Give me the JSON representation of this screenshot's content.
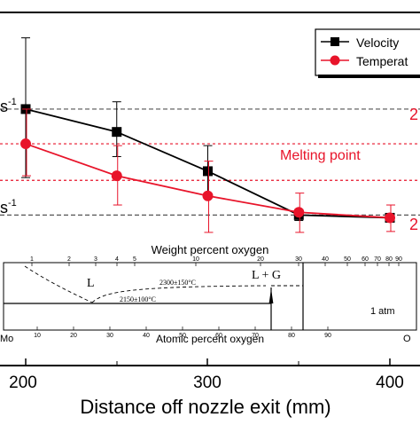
{
  "chart_data": {
    "type": "line",
    "x": [
      200,
      250,
      300,
      350,
      400
    ],
    "xlabel": "Distance off nozzle exit (mm)",
    "xticks": [
      200,
      300,
      400
    ],
    "series": [
      {
        "name": "Velocity",
        "color": "#000000",
        "marker": "square",
        "values": [
          2.4,
          2.15,
          1.72,
          1.24,
          1.21
        ],
        "error_low": [
          1.65,
          1.88,
          1.45,
          1.18,
          1.17
        ],
        "error_high": [
          3.18,
          2.48,
          2.0,
          1.3,
          1.25
        ]
      },
      {
        "name": "Temperature",
        "color": "#e8142a",
        "marker": "circle",
        "values": [
          2.02,
          1.67,
          1.45,
          1.27,
          1.21
        ],
        "error_low": [
          1.67,
          1.35,
          1.05,
          1.05,
          1.06
        ],
        "error_high": [
          2.4,
          2.0,
          1.83,
          1.48,
          1.35
        ]
      }
    ],
    "ylim": [
      0.0,
      3.4
    ],
    "reference_lines": [
      {
        "y": 2.4,
        "color": "#555555",
        "style": "dashed"
      },
      {
        "y": 2.02,
        "color": "#e8142a",
        "style": "dotted"
      },
      {
        "y": 1.62,
        "color": "#e8142a",
        "style": "dotted"
      },
      {
        "y": 1.24,
        "color": "#555555",
        "style": "dashed"
      }
    ],
    "annotations": {
      "melting_point": "Melting point",
      "left_label_upper": "s",
      "left_label_upper_sup": "-1",
      "left_label_lower": "s",
      "left_label_lower_sup": "-1",
      "right_label_upper": "2",
      "right_label_lower": "2"
    },
    "legend": {
      "placement": "top-right",
      "entries": [
        "Velocity",
        "Temperat"
      ]
    }
  },
  "phase_diagram": {
    "top_axis_title": "Weight percent oxygen",
    "top_ticks": [
      "1",
      "2",
      "3",
      "4",
      "5",
      "10",
      "20",
      "30",
      "40",
      "50",
      "60",
      "70",
      "80",
      "90"
    ],
    "bottom_axis_title": "Atomic percent oxygen",
    "bottom_ticks": [
      "10",
      "20",
      "30",
      "40",
      "50",
      "60",
      "70",
      "80",
      "90"
    ],
    "left_element": "Mo",
    "right_element": "O",
    "region_L": "L",
    "region_LG": "L + G",
    "label_2300": "2300±150°C",
    "label_2150": "2150±100°C",
    "pressure": "1 atm"
  },
  "colors": {
    "velocity": "#000000",
    "temperature": "#e8142a",
    "melting_line": "#e8142a",
    "ref_line": "#555555"
  }
}
